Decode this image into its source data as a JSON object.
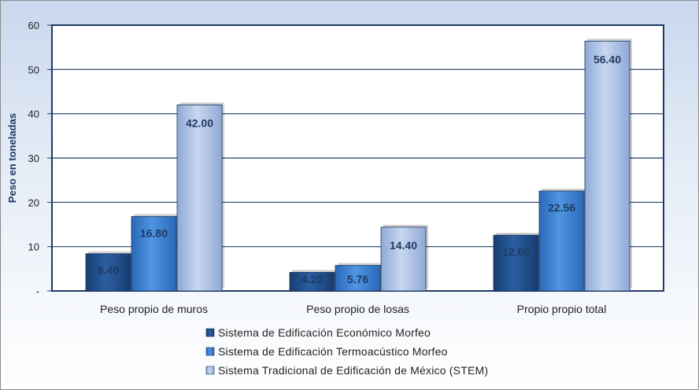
{
  "chart_data": {
    "type": "bar",
    "ylabel": "Peso en toneladas",
    "ylim": [
      0,
      60
    ],
    "yticks": [
      {
        "value": 0,
        "label": "-"
      },
      {
        "value": 10,
        "label": "10"
      },
      {
        "value": 20,
        "label": "20"
      },
      {
        "value": 30,
        "label": "30"
      },
      {
        "value": 40,
        "label": "40"
      },
      {
        "value": 50,
        "label": "50"
      },
      {
        "value": 60,
        "label": "60"
      }
    ],
    "categories": [
      "Peso propio de muros",
      "Peso propio de losas",
      "Propio propio total"
    ],
    "series": [
      {
        "name": "Sistema de Edificación  Económico  Morfeo",
        "values": [
          8.4,
          4.2,
          12.6
        ],
        "labels": [
          "8.40",
          "4.20",
          "12.60"
        ],
        "color": "#1f4e8c"
      },
      {
        "name": "Sistema de Edificación  Termoacústico  Morfeo",
        "values": [
          16.8,
          5.76,
          22.56
        ],
        "labels": [
          "16.80",
          "5.76",
          "22.56"
        ],
        "color": "#3a7fd0"
      },
      {
        "name": "Sistema Tradicional  de Edificación  de México (STEM)",
        "values": [
          42.0,
          14.4,
          56.4
        ],
        "labels": [
          "42.00",
          "14.40",
          "56.40"
        ],
        "color": "#a8bfe6"
      }
    ],
    "grid": true,
    "legend": "bottom"
  }
}
